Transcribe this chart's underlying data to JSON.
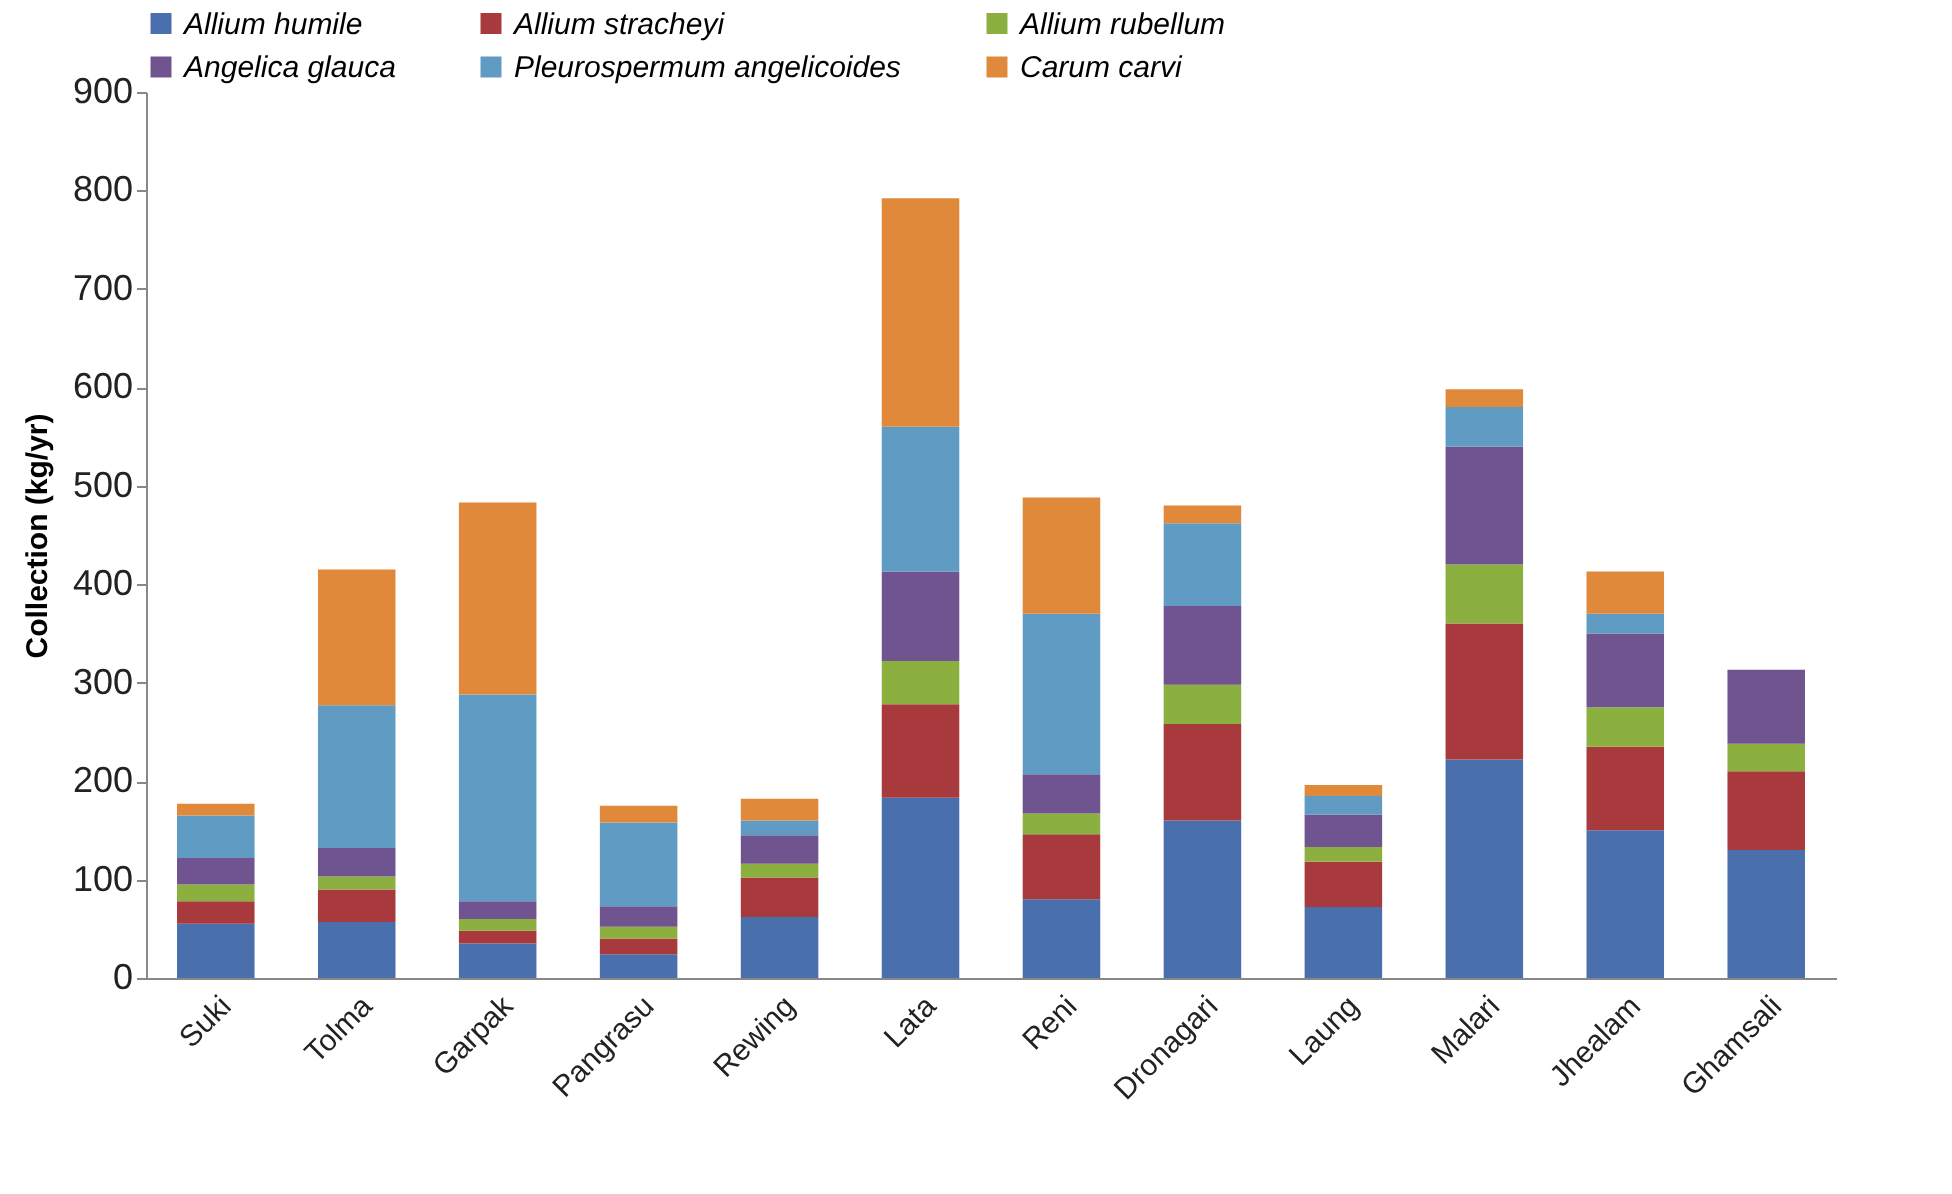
{
  "chart_data": {
    "type": "bar",
    "stacked": true,
    "ylabel": "Collection (kg/yr)",
    "ylim": [
      0,
      900
    ],
    "yticks": [
      0,
      100,
      200,
      300,
      400,
      500,
      600,
      700,
      800,
      900
    ],
    "grid": false,
    "legend": "top",
    "categories": [
      "Suki",
      "Tolma",
      "Garpak",
      "Pangrasu",
      "Rewing",
      "Lata",
      "Reni",
      "Dronagari",
      "Laung",
      "Malari",
      "Jhealam",
      "Ghamsali"
    ],
    "series": [
      {
        "name": "Allium humile",
        "color": "#4a6fad",
        "values": [
          55,
          57,
          35,
          24,
          62,
          183,
          80,
          160,
          72,
          222,
          150,
          130
        ]
      },
      {
        "name": "Allium stracheyi",
        "color": "#a8393d",
        "values": [
          23,
          33,
          13,
          16,
          40,
          95,
          66,
          98,
          46,
          138,
          85,
          80
        ]
      },
      {
        "name": "Allium rubellum",
        "color": "#8cb03f",
        "values": [
          17,
          13,
          12,
          12,
          14,
          44,
          21,
          40,
          15,
          60,
          40,
          28
        ]
      },
      {
        "name": "Angelica glauca",
        "color": "#6f5490",
        "values": [
          27,
          29,
          18,
          21,
          29,
          91,
          40,
          80,
          33,
          120,
          75,
          75
        ]
      },
      {
        "name": "Pleurospermum angelicoides",
        "color": "#5f9bc2",
        "values": [
          43,
          145,
          210,
          85,
          15,
          147,
          163,
          84,
          19,
          40,
          20,
          0
        ]
      },
      {
        "name": "Carum carvi",
        "color": "#e0893a",
        "values": [
          12,
          138,
          195,
          17,
          22,
          232,
          118,
          18,
          11,
          18,
          43,
          0
        ]
      }
    ]
  }
}
